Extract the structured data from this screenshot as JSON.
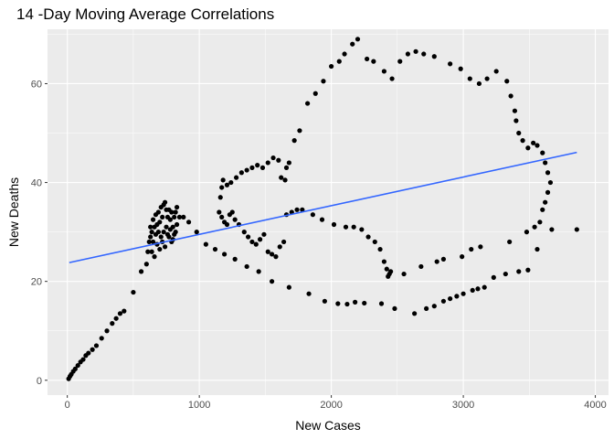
{
  "chart_data": {
    "type": "scatter",
    "title": "14 -Day Moving Average Correlations",
    "xlabel": "New  Cases",
    "ylabel": "New Deaths",
    "xlim": [
      -150,
      4100
    ],
    "ylim": [
      -3,
      71
    ],
    "xticks": [
      0,
      1000,
      2000,
      3000,
      4000
    ],
    "yticks": [
      0,
      20,
      40,
      60
    ],
    "grid": true,
    "colors": {
      "panel": "#ebebeb",
      "grid": "#ffffff",
      "points": "#000000",
      "fit_line": "#3366ff"
    },
    "trend_line": {
      "x": [
        15,
        3860
      ],
      "y": [
        23.8,
        46.1
      ]
    },
    "points": [
      [
        10,
        0.3
      ],
      [
        20,
        0.8
      ],
      [
        30,
        1.2
      ],
      [
        45,
        1.8
      ],
      [
        60,
        2.3
      ],
      [
        80,
        3.0
      ],
      [
        100,
        3.7
      ],
      [
        120,
        4.2
      ],
      [
        140,
        5.0
      ],
      [
        160,
        5.5
      ],
      [
        190,
        6.2
      ],
      [
        220,
        7.0
      ],
      [
        260,
        8.5
      ],
      [
        300,
        10.0
      ],
      [
        340,
        11.5
      ],
      [
        370,
        12.5
      ],
      [
        400,
        13.5
      ],
      [
        430,
        14.0
      ],
      [
        500,
        17.8
      ],
      [
        560,
        22.0
      ],
      [
        600,
        23.5
      ],
      [
        610,
        26.0
      ],
      [
        620,
        28.0
      ],
      [
        630,
        29.0
      ],
      [
        640,
        30.0
      ],
      [
        650,
        28.0
      ],
      [
        660,
        31.0
      ],
      [
        670,
        29.5
      ],
      [
        680,
        31.5
      ],
      [
        690,
        30.0
      ],
      [
        700,
        32.0
      ],
      [
        710,
        35.0
      ],
      [
        720,
        33.0
      ],
      [
        730,
        35.5
      ],
      [
        740,
        36.0
      ],
      [
        750,
        34.5
      ],
      [
        760,
        33.0
      ],
      [
        770,
        34.5
      ],
      [
        780,
        32.5
      ],
      [
        790,
        34.0
      ],
      [
        800,
        31.0
      ],
      [
        810,
        33.0
      ],
      [
        820,
        34.0
      ],
      [
        830,
        35.0
      ],
      [
        640,
        26.0
      ],
      [
        660,
        25.0
      ],
      [
        680,
        27.5
      ],
      [
        700,
        26.5
      ],
      [
        720,
        28.0
      ],
      [
        740,
        27.0
      ],
      [
        760,
        29.5
      ],
      [
        780,
        30.5
      ],
      [
        800,
        28.5
      ],
      [
        820,
        30.0
      ],
      [
        850,
        33.0
      ],
      [
        880,
        33.0
      ],
      [
        920,
        32.0
      ],
      [
        980,
        30.0
      ],
      [
        630,
        31.0
      ],
      [
        650,
        32.5
      ],
      [
        670,
        33.5
      ],
      [
        690,
        34.0
      ],
      [
        710,
        29.0
      ],
      [
        730,
        30.0
      ],
      [
        750,
        31.0
      ],
      [
        770,
        29.0
      ],
      [
        790,
        28.0
      ],
      [
        810,
        29.5
      ],
      [
        830,
        31.5
      ],
      [
        1050,
        27.5
      ],
      [
        1120,
        26.5
      ],
      [
        1190,
        25.5
      ],
      [
        1270,
        24.5
      ],
      [
        1360,
        23.0
      ],
      [
        1450,
        22.0
      ],
      [
        1550,
        20.0
      ],
      [
        1680,
        18.8
      ],
      [
        1830,
        17.5
      ],
      [
        1950,
        16.0
      ],
      [
        2050,
        15.5
      ],
      [
        2120,
        15.4
      ],
      [
        2180,
        15.8
      ],
      [
        2250,
        15.6
      ],
      [
        2380,
        15.5
      ],
      [
        2480,
        14.5
      ],
      [
        2630,
        13.5
      ],
      [
        2720,
        14.5
      ],
      [
        2780,
        15.0
      ],
      [
        2850,
        16.0
      ],
      [
        2900,
        16.5
      ],
      [
        2950,
        17.0
      ],
      [
        3000,
        17.5
      ],
      [
        3070,
        18.2
      ],
      [
        3110,
        18.5
      ],
      [
        3160,
        18.8
      ],
      [
        3230,
        20.8
      ],
      [
        3320,
        21.5
      ],
      [
        3420,
        22.0
      ],
      [
        3490,
        22.3
      ],
      [
        3560,
        26.5
      ],
      [
        3580,
        32.0
      ],
      [
        3600,
        34.5
      ],
      [
        3620,
        36.0
      ],
      [
        3640,
        38.0
      ],
      [
        3660,
        40.0
      ],
      [
        3640,
        42.0
      ],
      [
        3620,
        44.0
      ],
      [
        3600,
        46.0
      ],
      [
        3560,
        47.5
      ],
      [
        3530,
        48.0
      ],
      [
        3490,
        47.0
      ],
      [
        3450,
        48.5
      ],
      [
        3420,
        50.0
      ],
      [
        3400,
        52.5
      ],
      [
        3390,
        54.5
      ],
      [
        3360,
        57.5
      ],
      [
        3330,
        60.5
      ],
      [
        3250,
        62.5
      ],
      [
        3180,
        61.0
      ],
      [
        3120,
        60.0
      ],
      [
        3050,
        61.0
      ],
      [
        2980,
        63.0
      ],
      [
        2900,
        64.0
      ],
      [
        2780,
        65.5
      ],
      [
        2700,
        66.0
      ],
      [
        2640,
        66.5
      ],
      [
        2580,
        66.0
      ],
      [
        2520,
        64.5
      ],
      [
        2460,
        61.0
      ],
      [
        2400,
        62.5
      ],
      [
        2320,
        64.5
      ],
      [
        2270,
        65.0
      ],
      [
        2200,
        69.0
      ],
      [
        2160,
        68.0
      ],
      [
        2100,
        66.0
      ],
      [
        2060,
        64.5
      ],
      [
        2000,
        63.5
      ],
      [
        1940,
        60.5
      ],
      [
        1880,
        58.0
      ],
      [
        1820,
        56.0
      ],
      [
        1760,
        50.5
      ],
      [
        1720,
        48.5
      ],
      [
        1680,
        44.0
      ],
      [
        1660,
        43.0
      ],
      [
        1650,
        40.5
      ],
      [
        1620,
        41.0
      ],
      [
        1600,
        44.5
      ],
      [
        1560,
        45.0
      ],
      [
        1520,
        44.0
      ],
      [
        1480,
        43.0
      ],
      [
        1440,
        43.5
      ],
      [
        1400,
        43.0
      ],
      [
        1360,
        42.5
      ],
      [
        1320,
        42.0
      ],
      [
        1280,
        41.0
      ],
      [
        1240,
        40.0
      ],
      [
        1210,
        39.5
      ],
      [
        1180,
        40.5
      ],
      [
        1170,
        39.0
      ],
      [
        1160,
        37.0
      ],
      [
        1150,
        34.0
      ],
      [
        1170,
        33.0
      ],
      [
        1190,
        32.0
      ],
      [
        1210,
        31.5
      ],
      [
        1230,
        33.5
      ],
      [
        1250,
        34.0
      ],
      [
        1270,
        32.5
      ],
      [
        1300,
        31.5
      ],
      [
        1340,
        30.0
      ],
      [
        1370,
        29.0
      ],
      [
        1400,
        28.0
      ],
      [
        1430,
        27.5
      ],
      [
        1460,
        28.5
      ],
      [
        1490,
        29.5
      ],
      [
        1520,
        26.0
      ],
      [
        1550,
        25.5
      ],
      [
        1580,
        25.0
      ],
      [
        1610,
        27.0
      ],
      [
        1640,
        28.0
      ],
      [
        1660,
        33.5
      ],
      [
        1700,
        34.0
      ],
      [
        1740,
        34.5
      ],
      [
        1780,
        34.5
      ],
      [
        1860,
        33.5
      ],
      [
        1930,
        32.5
      ],
      [
        2020,
        31.5
      ],
      [
        2110,
        31.0
      ],
      [
        2170,
        31.0
      ],
      [
        2230,
        30.5
      ],
      [
        2280,
        29.0
      ],
      [
        2330,
        28.0
      ],
      [
        2370,
        26.5
      ],
      [
        2400,
        24.0
      ],
      [
        2420,
        22.5
      ],
      [
        2430,
        21.0
      ],
      [
        2440,
        21.5
      ],
      [
        2450,
        22.0
      ],
      [
        2550,
        21.5
      ],
      [
        2680,
        23.0
      ],
      [
        2800,
        24.0
      ],
      [
        2850,
        24.5
      ],
      [
        2990,
        25.0
      ],
      [
        3060,
        26.5
      ],
      [
        3130,
        27.0
      ],
      [
        3350,
        28.0
      ],
      [
        3480,
        30.0
      ],
      [
        3540,
        31.0
      ],
      [
        3670,
        30.5
      ],
      [
        3860,
        30.5
      ]
    ]
  }
}
